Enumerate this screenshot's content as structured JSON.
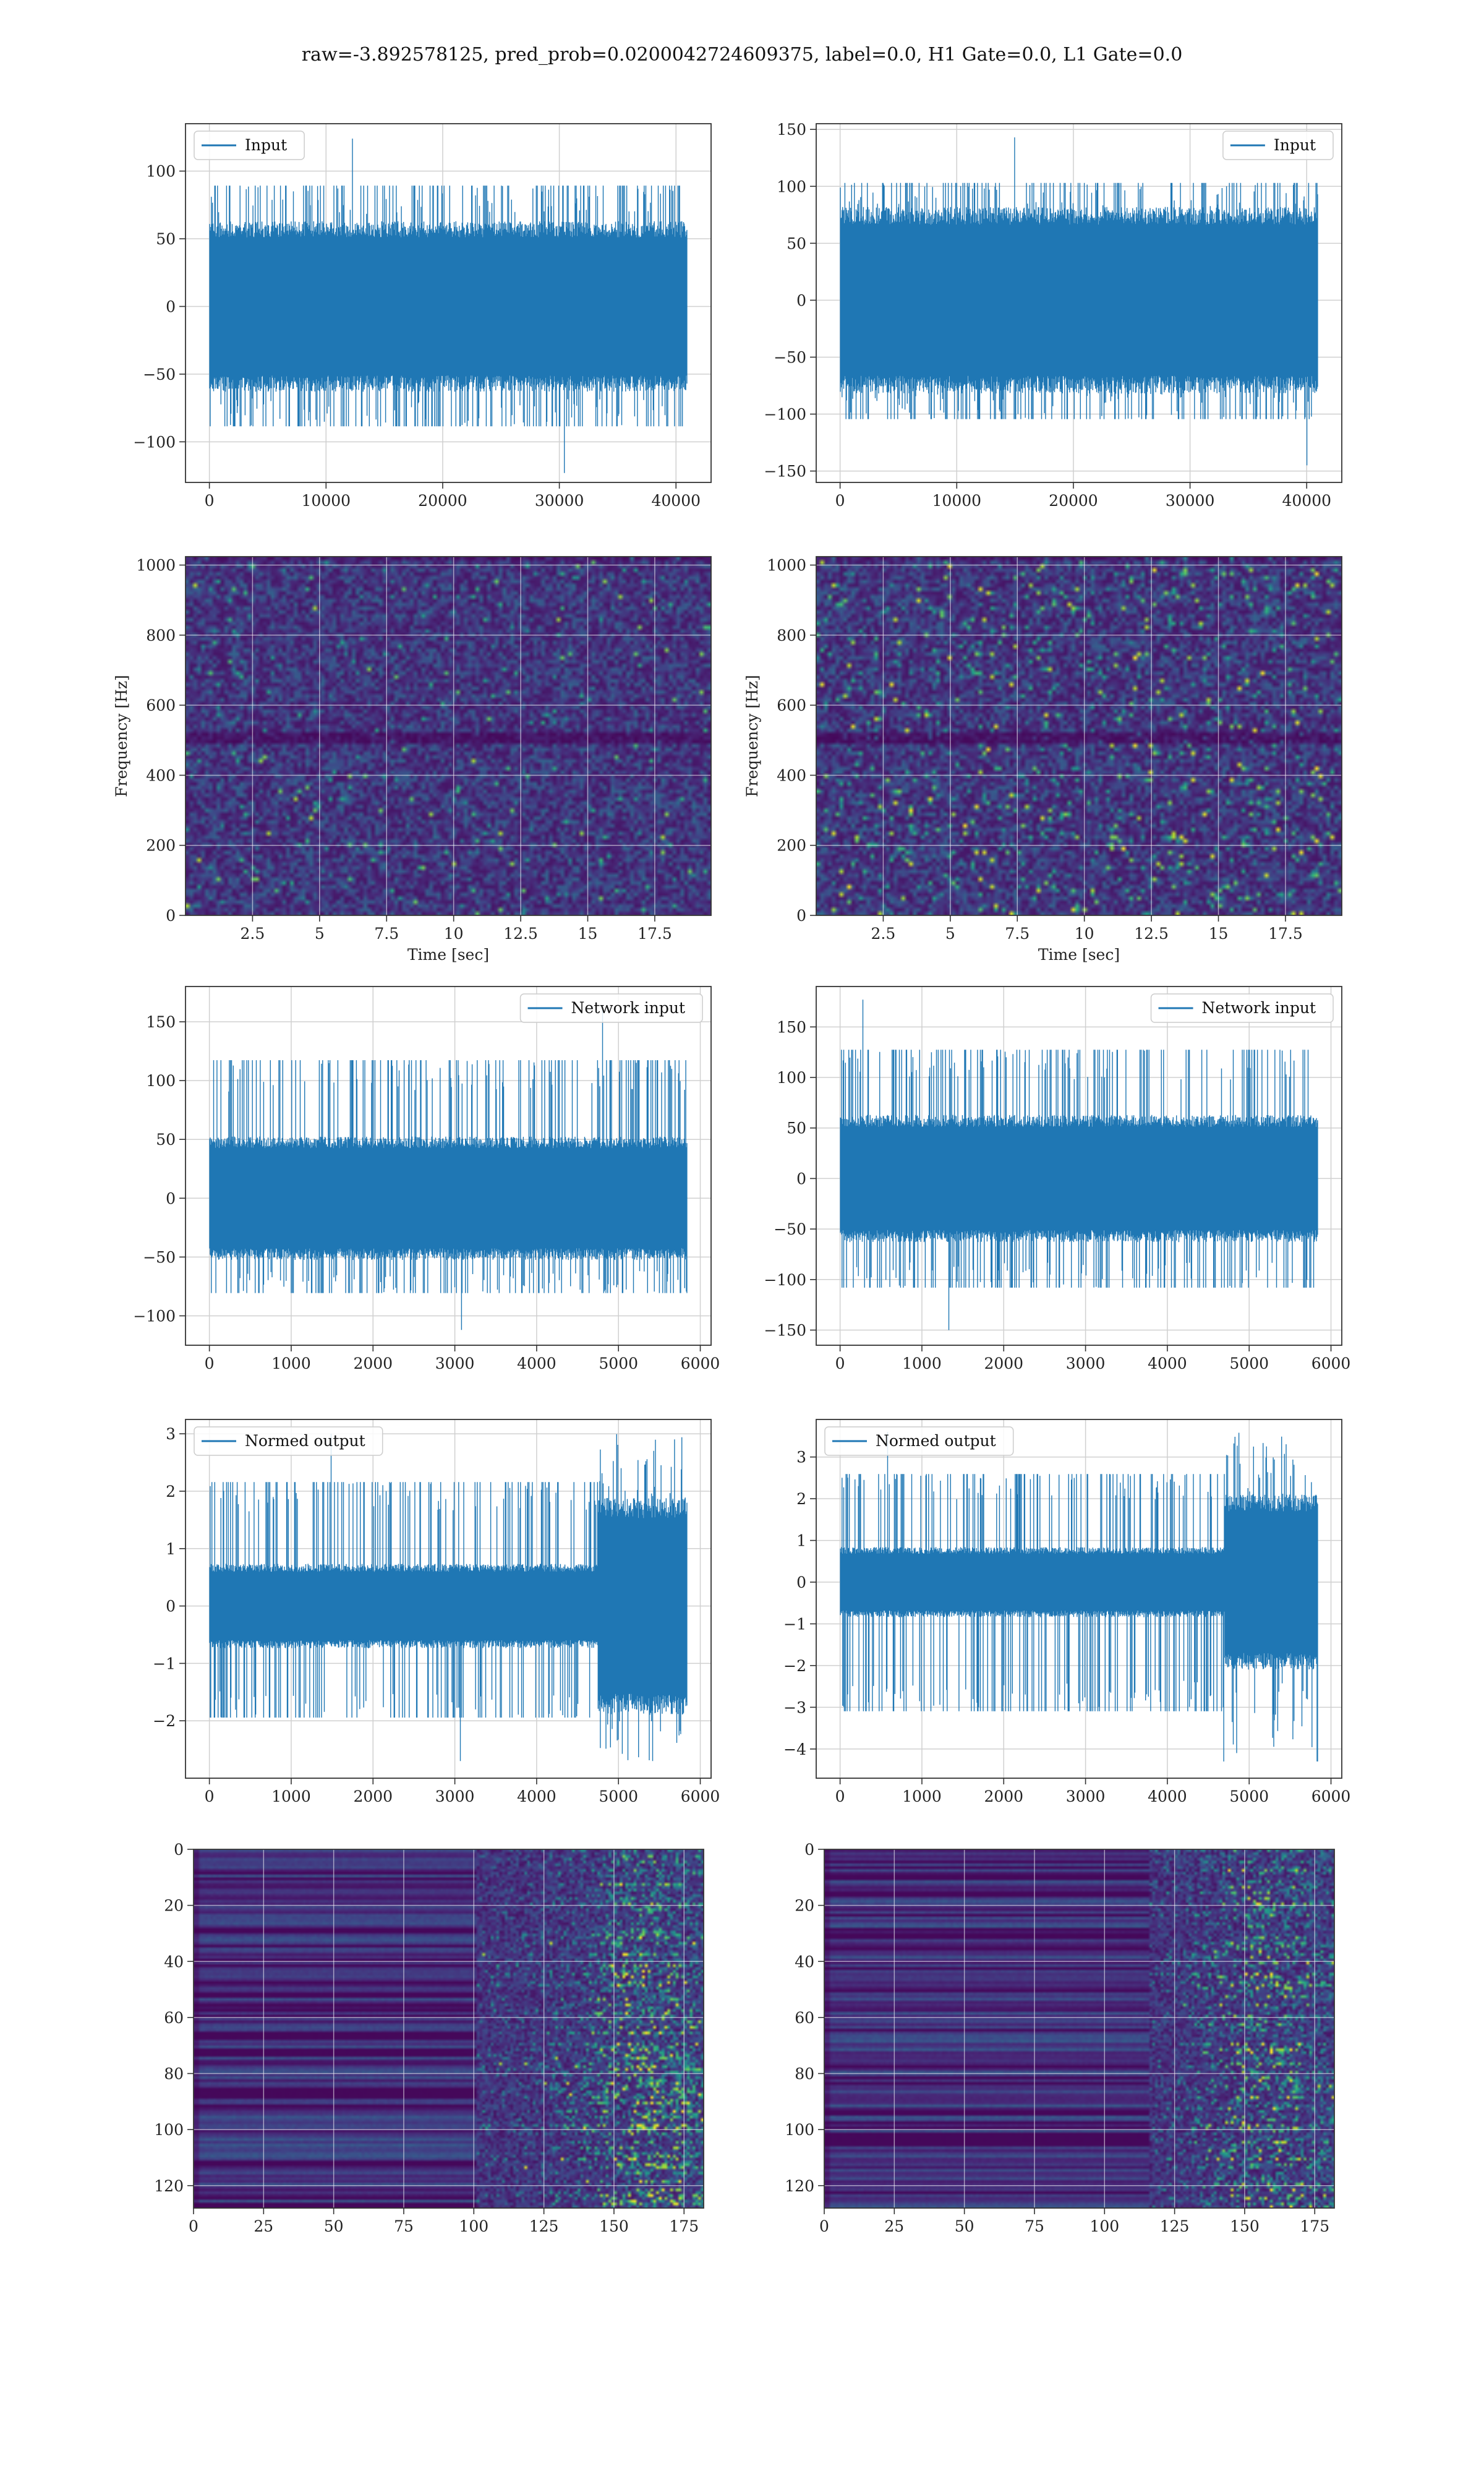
{
  "figure": {
    "suptitle": "raw=-3.892578125, pred_prob=0.0200042724609375, label=0.0, H1 Gate=0.0, L1 Gate=0.0",
    "colors": {
      "line": "#1f77b4",
      "frame": "#333333",
      "grid": "#d0d0d0",
      "tick_text": "#222222"
    },
    "colormap": "viridis"
  },
  "chart_data": [
    {
      "id": "input-left",
      "type": "line",
      "panel": "row1-left",
      "series": [
        {
          "name": "Input",
          "noise": {
            "n": 40960,
            "mean": 0,
            "core_amplitude": 60,
            "peak_range": [
              -123,
              124
            ]
          }
        }
      ],
      "xlim": [
        -2048,
        43008
      ],
      "ylim": [
        -130,
        135
      ],
      "xticks": [
        0,
        10000,
        20000,
        30000,
        40000
      ],
      "yticks": [
        -100,
        -50,
        0,
        50,
        100
      ],
      "xlabel": "",
      "ylabel": "",
      "legend": "top-left",
      "grid": true
    },
    {
      "id": "input-right",
      "type": "line",
      "panel": "row1-right",
      "series": [
        {
          "name": "Input",
          "noise": {
            "n": 40960,
            "mean": 0,
            "core_amplitude": 78,
            "peak_range": [
              -145,
              143
            ]
          }
        }
      ],
      "xlim": [
        -2048,
        43008
      ],
      "ylim": [
        -160,
        155
      ],
      "xticks": [
        0,
        10000,
        20000,
        30000,
        40000
      ],
      "yticks": [
        -150,
        -100,
        -50,
        0,
        50,
        100,
        150
      ],
      "xlabel": "",
      "ylabel": "",
      "legend": "top-right",
      "grid": true
    },
    {
      "id": "spectrogram-left",
      "type": "heatmap",
      "panel": "row2-left",
      "xlim": [
        0,
        19.6
      ],
      "ylim": [
        0,
        1024
      ],
      "xticks": [
        2.5,
        5.0,
        7.5,
        10.0,
        12.5,
        15.0,
        17.5
      ],
      "yticks": [
        0,
        200,
        400,
        600,
        800,
        1000
      ],
      "xlabel": "Time [sec]",
      "ylabel": "Frequency [Hz]",
      "grid": true,
      "features": {
        "dark_band_hz": 512,
        "hot_spot_density": "low"
      }
    },
    {
      "id": "spectrogram-right",
      "type": "heatmap",
      "panel": "row2-right",
      "xlim": [
        0,
        19.6
      ],
      "ylim": [
        0,
        1024
      ],
      "xticks": [
        2.5,
        5.0,
        7.5,
        10.0,
        12.5,
        15.0,
        17.5
      ],
      "yticks": [
        0,
        200,
        400,
        600,
        800,
        1000
      ],
      "xlabel": "Time [sec]",
      "ylabel": "Frequency [Hz]",
      "grid": true,
      "features": {
        "dark_band_hz": 512,
        "hot_spot_density": "high"
      }
    },
    {
      "id": "network-input-left",
      "type": "line",
      "panel": "row3-left",
      "series": [
        {
          "name": "Network input",
          "noise": {
            "n": 5840,
            "mean": 0,
            "core_amplitude": 50,
            "peak_range": [
              -112,
              163
            ]
          }
        }
      ],
      "xlim": [
        -292,
        6132
      ],
      "ylim": [
        -125,
        180
      ],
      "xticks": [
        0,
        1000,
        2000,
        3000,
        4000,
        5000,
        6000
      ],
      "yticks": [
        -100,
        -50,
        0,
        50,
        100,
        150
      ],
      "xlabel": "",
      "ylabel": "",
      "legend": "top-right",
      "grid": true
    },
    {
      "id": "network-input-right",
      "type": "line",
      "panel": "row3-right",
      "series": [
        {
          "name": "Network input",
          "noise": {
            "n": 5840,
            "mean": 0,
            "core_amplitude": 60,
            "peak_range": [
              -150,
              177
            ]
          }
        }
      ],
      "xlim": [
        -292,
        6132
      ],
      "ylim": [
        -165,
        190
      ],
      "xticks": [
        0,
        1000,
        2000,
        3000,
        4000,
        5000,
        6000
      ],
      "yticks": [
        -150,
        -100,
        -50,
        0,
        50,
        100,
        150
      ],
      "xlabel": "",
      "ylabel": "",
      "legend": "top-right",
      "grid": true
    },
    {
      "id": "normed-output-left",
      "type": "line",
      "panel": "row4-left",
      "series": [
        {
          "name": "Normed output",
          "noise": {
            "n": 5840,
            "mean": 0,
            "core_amplitude": 0.7,
            "burst_from": 4750,
            "burst_amplitude": 1.8,
            "peak_range": [
              -2.7,
              3.0
            ]
          }
        }
      ],
      "xlim": [
        -292,
        6132
      ],
      "ylim": [
        -3.0,
        3.25
      ],
      "xticks": [
        0,
        1000,
        2000,
        3000,
        4000,
        5000,
        6000
      ],
      "yticks": [
        -2,
        -1,
        0,
        1,
        2,
        3
      ],
      "xlabel": "",
      "ylabel": "",
      "legend": "top-left",
      "grid": true
    },
    {
      "id": "normed-output-right",
      "type": "line",
      "panel": "row4-right",
      "series": [
        {
          "name": "Normed output",
          "noise": {
            "n": 5840,
            "mean": 0,
            "core_amplitude": 0.8,
            "burst_from": 4700,
            "burst_amplitude": 2.0,
            "peak_range": [
              -4.3,
              3.6
            ]
          }
        }
      ],
      "xlim": [
        -292,
        6132
      ],
      "ylim": [
        -4.7,
        3.9
      ],
      "xticks": [
        0,
        1000,
        2000,
        3000,
        4000,
        5000,
        6000
      ],
      "yticks": [
        -4,
        -3,
        -2,
        -1,
        0,
        1,
        2,
        3
      ],
      "xlabel": "",
      "ylabel": "",
      "legend": "top-left",
      "grid": true
    },
    {
      "id": "feature-map-left",
      "type": "heatmap",
      "panel": "row5-left",
      "rows": 128,
      "cols": 182,
      "xlim": [
        0,
        182
      ],
      "ylim": [
        128,
        0
      ],
      "xticks": [
        0,
        25,
        50,
        75,
        100,
        125,
        150,
        175
      ],
      "yticks": [
        0,
        20,
        40,
        60,
        80,
        100,
        120
      ],
      "xlabel": "",
      "ylabel": "",
      "grid": true,
      "features": {
        "activity_onset_col": 100,
        "peak_col": 160
      }
    },
    {
      "id": "feature-map-right",
      "type": "heatmap",
      "panel": "row5-right",
      "rows": 128,
      "cols": 182,
      "xlim": [
        0,
        182
      ],
      "ylim": [
        128,
        0
      ],
      "xticks": [
        0,
        25,
        50,
        75,
        100,
        125,
        150,
        175
      ],
      "yticks": [
        0,
        20,
        40,
        60,
        80,
        100,
        120
      ],
      "xlabel": "",
      "ylabel": "",
      "grid": true,
      "features": {
        "activity_onset_col": 115,
        "peak_col": 155
      }
    }
  ]
}
